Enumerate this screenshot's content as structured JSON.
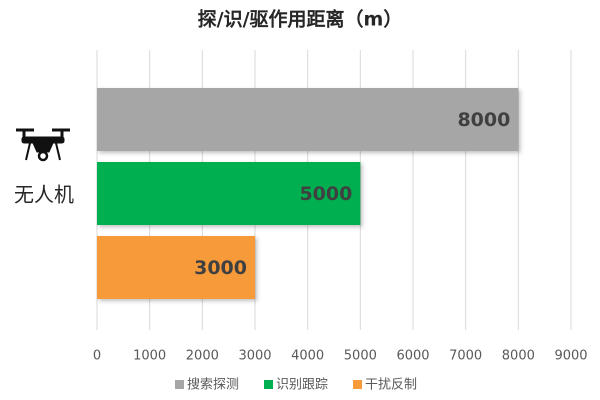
{
  "chart_data": {
    "type": "bar",
    "orientation": "horizontal",
    "title": "探/识/驱作用距离（m）",
    "categories": [
      "无人机"
    ],
    "series": [
      {
        "name": "搜索探测",
        "color": "#a6a6a6",
        "values": [
          8000
        ]
      },
      {
        "name": "识别跟踪",
        "color": "#00b050",
        "values": [
          5000
        ]
      },
      {
        "name": "干扰反制",
        "color": "#f79a3a",
        "values": [
          3000
        ]
      }
    ],
    "xlim": [
      0,
      9000
    ],
    "xticks": [
      0,
      1000,
      2000,
      3000,
      4000,
      5000,
      6000,
      7000,
      8000,
      9000
    ],
    "grid": true,
    "legend": "bottom"
  }
}
